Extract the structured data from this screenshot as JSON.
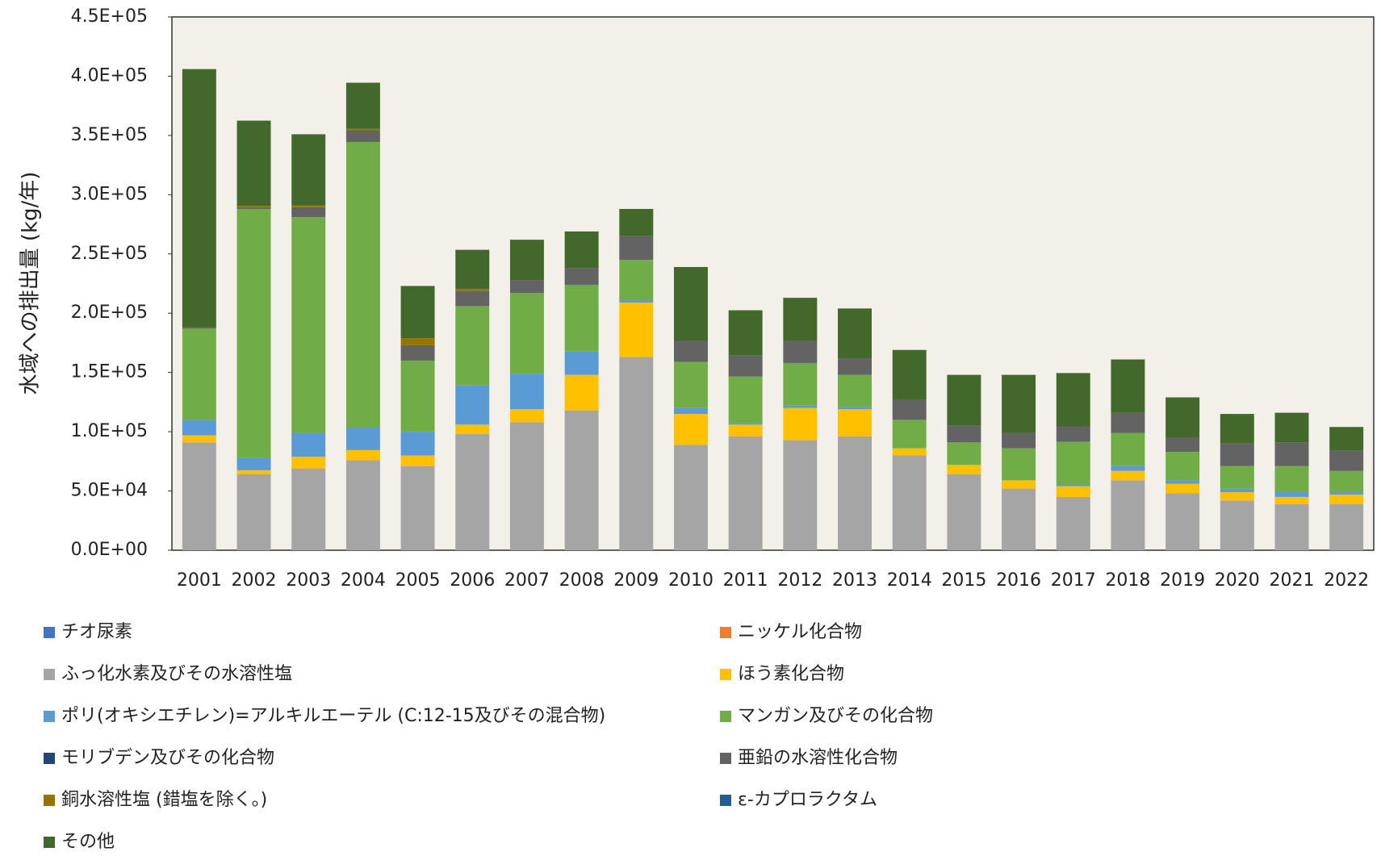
{
  "chart_data": {
    "type": "stacked_bar",
    "y_label": "水域への排出量 (kg/年)",
    "categories": [
      "2001",
      "2002",
      "2003",
      "2004",
      "2005",
      "2006",
      "2007",
      "2008",
      "2009",
      "2010",
      "2011",
      "2012",
      "2013",
      "2014",
      "2015",
      "2016",
      "2017",
      "2018",
      "2019",
      "2020",
      "2021",
      "2022"
    ],
    "ylim": [
      0,
      450000
    ],
    "yticks": [
      {
        "value": 0,
        "label": "0.0E+00"
      },
      {
        "value": 50000,
        "label": "5.0E+04"
      },
      {
        "value": 100000,
        "label": "1.0E+05"
      },
      {
        "value": 150000,
        "label": "1.5E+05"
      },
      {
        "value": 200000,
        "label": "2.0E+05"
      },
      {
        "value": 250000,
        "label": "2.5E+05"
      },
      {
        "value": 300000,
        "label": "3.0E+05"
      },
      {
        "value": 350000,
        "label": "3.5E+05"
      },
      {
        "value": 400000,
        "label": "4.0E+05"
      },
      {
        "value": 450000,
        "label": "4.5E+05"
      }
    ],
    "grid": false,
    "series": [
      {
        "name": "チオ尿素",
        "color": "#4472c4",
        "values": [
          0,
          0,
          0,
          0,
          0,
          0,
          0,
          0,
          0,
          0,
          0,
          0,
          0,
          0,
          0,
          0,
          0,
          0,
          0,
          0,
          0,
          0
        ]
      },
      {
        "name": "ニッケル化合物",
        "color": "#ed7d31",
        "values": [
          0,
          0,
          0,
          0,
          0,
          0,
          0,
          0,
          0,
          0,
          0,
          0,
          0,
          0,
          0,
          0,
          0,
          0,
          0,
          0,
          0,
          0
        ]
      },
      {
        "name": "ふっ化水素及びその水溶性塩",
        "color": "#a5a5a5",
        "values": [
          91000,
          64000,
          69000,
          76000,
          71000,
          98000,
          108000,
          118000,
          163000,
          89000,
          96000,
          93000,
          96000,
          80000,
          64000,
          52000,
          45000,
          59000,
          48000,
          42000,
          39000,
          39000
        ]
      },
      {
        "name": "ほう素化合物",
        "color": "#ffc000",
        "values": [
          6000,
          3500,
          10000,
          8500,
          9000,
          8000,
          11000,
          30000,
          46000,
          26000,
          10000,
          27000,
          23000,
          6000,
          8000,
          7000,
          9000,
          8000,
          8000,
          7000,
          6000,
          8000
        ]
      },
      {
        "name": "ポリ(オキシエチレン)=アルキルエーテル (C:12-15及びその混合物)",
        "color": "#5b9bd5",
        "values": [
          13000,
          10500,
          20000,
          19000,
          20000,
          33000,
          30000,
          20000,
          2000,
          5000,
          1500,
          2000,
          2000,
          0,
          0,
          0,
          1500,
          4000,
          3000,
          3000,
          4000,
          2000
        ]
      },
      {
        "name": "マンガン及びその化合物",
        "color": "#70ad47",
        "values": [
          77000,
          210000,
          182000,
          241000,
          60000,
          67000,
          68000,
          56000,
          34000,
          39000,
          39000,
          36000,
          27000,
          24000,
          19000,
          27000,
          36000,
          28000,
          24000,
          19000,
          22000,
          18000
        ]
      },
      {
        "name": "モリブデン及びその化合物",
        "color": "#264478",
        "values": [
          0,
          0,
          0,
          0,
          0,
          0,
          0,
          0,
          0,
          0,
          0,
          0,
          0,
          0,
          0,
          0,
          0,
          0,
          0,
          0,
          0,
          0
        ]
      },
      {
        "name": "亜鉛の水溶性化合物",
        "color": "#636363",
        "values": [
          1000,
          1000,
          8500,
          9500,
          13000,
          13000,
          11000,
          14000,
          20000,
          18000,
          18000,
          19000,
          14000,
          17000,
          14000,
          13000,
          13000,
          17000,
          12000,
          19000,
          20000,
          17000
        ]
      },
      {
        "name": "銅水溶性塩 (錯塩を除く。)",
        "color": "#997300",
        "values": [
          0,
          1500,
          1500,
          1500,
          6000,
          1500,
          0,
          0,
          0,
          0,
          0,
          0,
          0,
          0,
          0,
          0,
          0,
          0,
          0,
          0,
          0,
          0
        ]
      },
      {
        "name": "ε-カプロラクタム",
        "color": "#255e91",
        "values": [
          0,
          0,
          0,
          0,
          0,
          0,
          0,
          0,
          0,
          0,
          0,
          0,
          0,
          0,
          0,
          0,
          0,
          0,
          0,
          0,
          0,
          0
        ]
      },
      {
        "name": "その他",
        "color": "#43682b",
        "values": [
          218000,
          72000,
          60000,
          39000,
          44000,
          33000,
          34000,
          31000,
          23000,
          62000,
          38000,
          36000,
          42000,
          42000,
          43000,
          49000,
          45000,
          45000,
          34000,
          25000,
          25000,
          20000
        ]
      }
    ]
  }
}
